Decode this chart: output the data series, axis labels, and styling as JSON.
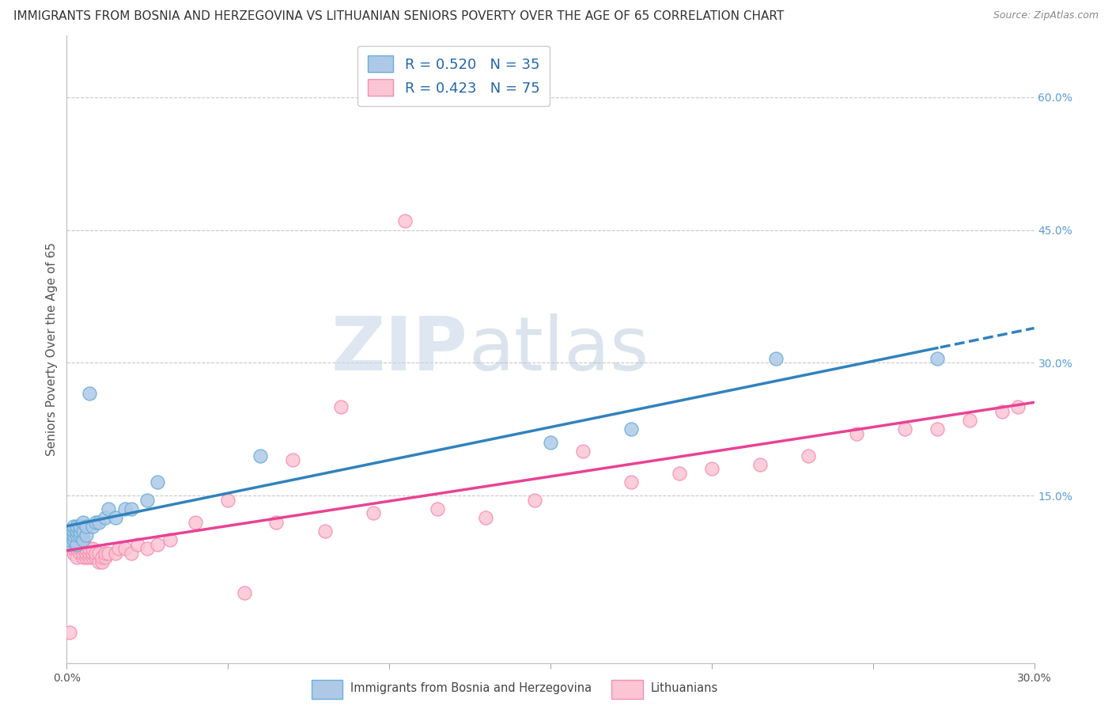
{
  "title": "IMMIGRANTS FROM BOSNIA AND HERZEGOVINA VS LITHUANIAN SENIORS POVERTY OVER THE AGE OF 65 CORRELATION CHART",
  "source": "Source: ZipAtlas.com",
  "ylabel": "Seniors Poverty Over the Age of 65",
  "x_min": 0.0,
  "x_max": 0.3,
  "y_min": -0.04,
  "y_max": 0.67,
  "right_yticks": [
    0.15,
    0.3,
    0.45,
    0.6
  ],
  "right_yticklabels": [
    "15.0%",
    "30.0%",
    "45.0%",
    "60.0%"
  ],
  "x_ticks": [
    0.0,
    0.05,
    0.1,
    0.15,
    0.2,
    0.25,
    0.3
  ],
  "x_ticklabels": [
    "0.0%",
    "",
    "",
    "",
    "",
    "",
    "30.0%"
  ],
  "blue_R": 0.52,
  "blue_N": 35,
  "pink_R": 0.423,
  "pink_N": 75,
  "blue_color": "#6baed6",
  "blue_fill": "#aec9e8",
  "pink_color": "#f48fb1",
  "pink_fill": "#fcc5d5",
  "blue_line_color": "#3182bd",
  "pink_line_color": "#e84393",
  "legend_label_blue": "Immigrants from Bosnia and Herzegovina",
  "legend_label_pink": "Lithuanians",
  "blue_scatter_x": [
    0.001,
    0.001,
    0.001,
    0.002,
    0.002,
    0.002,
    0.002,
    0.003,
    0.003,
    0.003,
    0.003,
    0.004,
    0.004,
    0.004,
    0.005,
    0.005,
    0.005,
    0.006,
    0.006,
    0.007,
    0.008,
    0.009,
    0.01,
    0.012,
    0.013,
    0.015,
    0.018,
    0.02,
    0.025,
    0.028,
    0.06,
    0.15,
    0.175,
    0.22,
    0.27
  ],
  "blue_scatter_y": [
    0.095,
    0.1,
    0.105,
    0.1,
    0.105,
    0.11,
    0.115,
    0.095,
    0.105,
    0.11,
    0.115,
    0.105,
    0.11,
    0.115,
    0.1,
    0.11,
    0.12,
    0.105,
    0.115,
    0.265,
    0.115,
    0.12,
    0.12,
    0.125,
    0.135,
    0.125,
    0.135,
    0.135,
    0.145,
    0.165,
    0.195,
    0.21,
    0.225,
    0.305,
    0.305
  ],
  "pink_scatter_x": [
    0.001,
    0.001,
    0.001,
    0.001,
    0.001,
    0.001,
    0.002,
    0.002,
    0.002,
    0.002,
    0.002,
    0.003,
    0.003,
    0.003,
    0.003,
    0.003,
    0.004,
    0.004,
    0.004,
    0.004,
    0.004,
    0.005,
    0.005,
    0.005,
    0.005,
    0.006,
    0.006,
    0.006,
    0.007,
    0.007,
    0.007,
    0.008,
    0.008,
    0.008,
    0.009,
    0.009,
    0.01,
    0.01,
    0.011,
    0.011,
    0.012,
    0.012,
    0.013,
    0.015,
    0.016,
    0.018,
    0.02,
    0.022,
    0.025,
    0.028,
    0.032,
    0.04,
    0.05,
    0.055,
    0.065,
    0.07,
    0.08,
    0.085,
    0.095,
    0.105,
    0.115,
    0.13,
    0.145,
    0.16,
    0.175,
    0.19,
    0.2,
    0.215,
    0.23,
    0.245,
    0.26,
    0.27,
    0.28,
    0.29,
    0.295
  ],
  "pink_scatter_y": [
    0.09,
    0.095,
    0.1,
    0.105,
    0.11,
    -0.005,
    0.085,
    0.09,
    0.095,
    0.1,
    0.105,
    0.08,
    0.09,
    0.095,
    0.1,
    0.105,
    0.085,
    0.09,
    0.095,
    0.1,
    0.105,
    0.08,
    0.085,
    0.09,
    0.095,
    0.08,
    0.085,
    0.09,
    0.08,
    0.085,
    0.09,
    0.08,
    0.085,
    0.09,
    0.08,
    0.085,
    0.075,
    0.085,
    0.075,
    0.08,
    0.08,
    0.085,
    0.085,
    0.085,
    0.09,
    0.09,
    0.085,
    0.095,
    0.09,
    0.095,
    0.1,
    0.12,
    0.145,
    0.04,
    0.12,
    0.19,
    0.11,
    0.25,
    0.13,
    0.46,
    0.135,
    0.125,
    0.145,
    0.2,
    0.165,
    0.175,
    0.18,
    0.185,
    0.195,
    0.22,
    0.225,
    0.225,
    0.235,
    0.245,
    0.25
  ],
  "watermark_zip": "ZIP",
  "watermark_atlas": "atlas",
  "background_color": "#ffffff",
  "grid_color": "#c8c8c8",
  "title_fontsize": 11,
  "axis_label_fontsize": 11,
  "tick_fontsize": 10,
  "blue_trend_x_start": 0.0,
  "blue_trend_x_solid_end": 0.27,
  "blue_trend_x_end": 0.3
}
